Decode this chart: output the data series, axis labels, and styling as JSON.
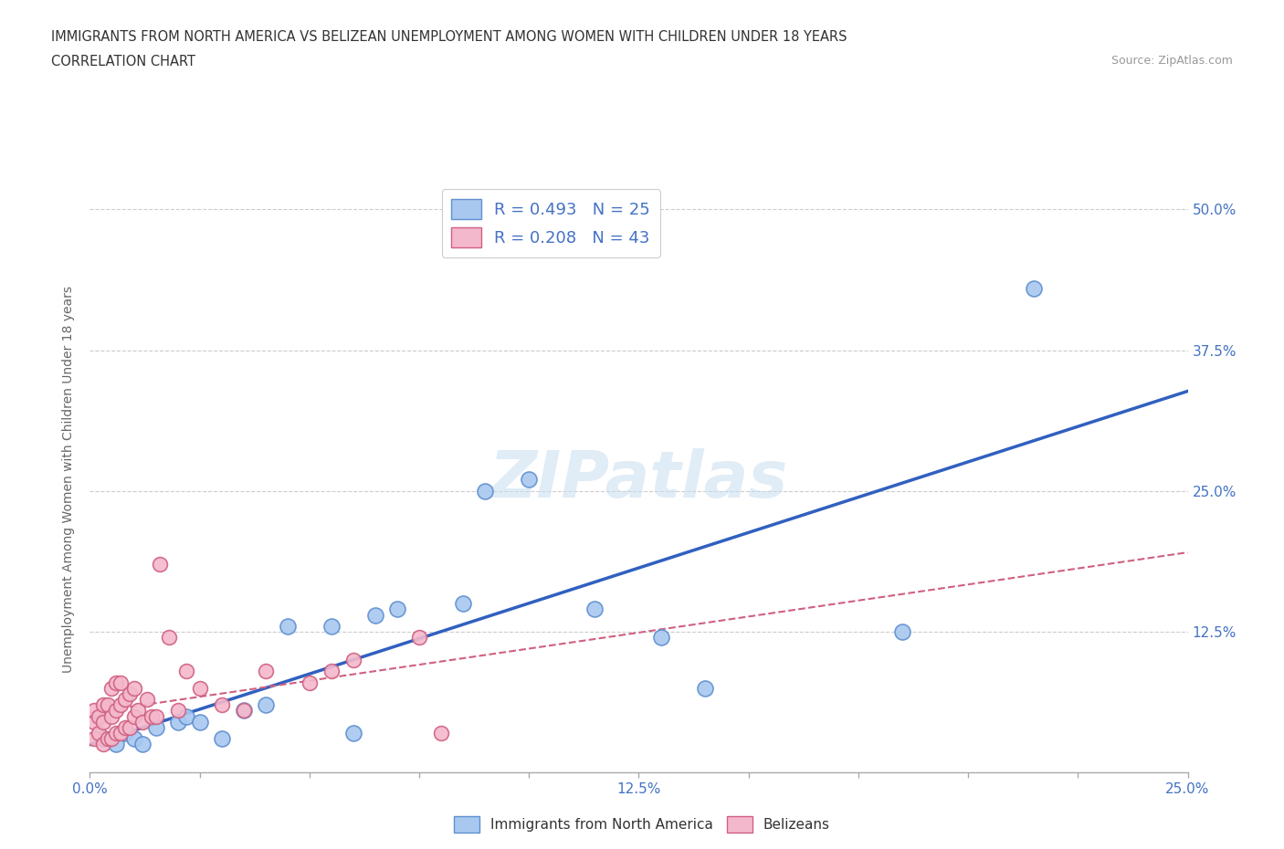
{
  "title_line1": "IMMIGRANTS FROM NORTH AMERICA VS BELIZEAN UNEMPLOYMENT AMONG WOMEN WITH CHILDREN UNDER 18 YEARS",
  "title_line2": "CORRELATION CHART",
  "source_text": "Source: ZipAtlas.com",
  "ylabel": "Unemployment Among Women with Children Under 18 years",
  "xlim": [
    0.0,
    0.25
  ],
  "ylim": [
    0.0,
    0.52
  ],
  "xticks": [
    0.0,
    0.025,
    0.05,
    0.075,
    0.1,
    0.125,
    0.15,
    0.175,
    0.2,
    0.225,
    0.25
  ],
  "xtick_labels": [
    "0.0%",
    "",
    "",
    "",
    "",
    "12.5%",
    "",
    "",
    "",
    "",
    "25.0%"
  ],
  "ytick_labels": [
    "",
    "12.5%",
    "25.0%",
    "37.5%",
    "50.0%"
  ],
  "yticks": [
    0.0,
    0.125,
    0.25,
    0.375,
    0.5
  ],
  "blue_color": "#a8c8f0",
  "pink_color": "#f4b8cc",
  "blue_edge_color": "#6090d0",
  "pink_edge_color": "#d06080",
  "blue_line_color": "#3060c0",
  "pink_line_color": "#d06080",
  "legend_r1": "R = 0.493",
  "legend_n1": "N = 25",
  "legend_r2": "R = 0.208",
  "legend_n2": "N = 43",
  "blue_x": [
    0.003,
    0.006,
    0.008,
    0.01,
    0.012,
    0.015,
    0.02,
    0.022,
    0.025,
    0.03,
    0.035,
    0.04,
    0.045,
    0.055,
    0.06,
    0.065,
    0.07,
    0.085,
    0.09,
    0.1,
    0.115,
    0.13,
    0.14,
    0.185,
    0.215
  ],
  "blue_y": [
    0.03,
    0.025,
    0.035,
    0.03,
    0.025,
    0.04,
    0.045,
    0.05,
    0.045,
    0.03,
    0.055,
    0.06,
    0.13,
    0.13,
    0.035,
    0.14,
    0.145,
    0.15,
    0.25,
    0.26,
    0.145,
    0.12,
    0.075,
    0.125,
    0.43
  ],
  "pink_x": [
    0.001,
    0.001,
    0.001,
    0.002,
    0.002,
    0.003,
    0.003,
    0.003,
    0.004,
    0.004,
    0.005,
    0.005,
    0.005,
    0.006,
    0.006,
    0.006,
    0.007,
    0.007,
    0.007,
    0.008,
    0.008,
    0.009,
    0.009,
    0.01,
    0.01,
    0.011,
    0.012,
    0.013,
    0.014,
    0.015,
    0.016,
    0.018,
    0.02,
    0.022,
    0.025,
    0.03,
    0.035,
    0.04,
    0.05,
    0.055,
    0.06,
    0.075,
    0.08
  ],
  "pink_y": [
    0.03,
    0.045,
    0.055,
    0.035,
    0.05,
    0.025,
    0.045,
    0.06,
    0.03,
    0.06,
    0.03,
    0.05,
    0.075,
    0.035,
    0.055,
    0.08,
    0.035,
    0.06,
    0.08,
    0.04,
    0.065,
    0.04,
    0.07,
    0.05,
    0.075,
    0.055,
    0.045,
    0.065,
    0.05,
    0.05,
    0.185,
    0.12,
    0.055,
    0.09,
    0.075,
    0.06,
    0.055,
    0.09,
    0.08,
    0.09,
    0.1,
    0.12,
    0.035
  ],
  "watermark_text": "ZIPatlas",
  "bg_color": "#ffffff",
  "grid_color": "#cccccc",
  "axis_color": "#aaaaaa",
  "tick_label_color": "#4472c4",
  "ylabel_color": "#666666",
  "title_color": "#333333"
}
